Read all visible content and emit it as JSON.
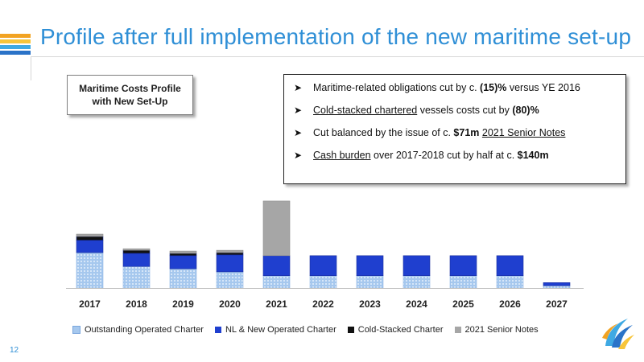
{
  "header": {
    "title": "Profile after full implementation of the new maritime set-up"
  },
  "costs_box": {
    "line1": "Maritime Costs Profile",
    "line2": "with New Set-Up"
  },
  "bullets": [
    {
      "parts": [
        {
          "t": "Maritime-related obligations cut by c. "
        },
        {
          "t": "(15)%",
          "b": true
        },
        {
          "t": " versus YE 2016"
        }
      ]
    },
    {
      "parts": [
        {
          "t": "Cold-stacked chartered",
          "u": true
        },
        {
          "t": " vessels costs cut by "
        },
        {
          "t": "(80)%",
          "b": true
        }
      ]
    },
    {
      "parts": [
        {
          "t": "Cut balanced by the issue of c. "
        },
        {
          "t": "$71m",
          "b": true
        },
        {
          "t": " "
        },
        {
          "t": "2021 Senior Notes",
          "u": true
        }
      ]
    },
    {
      "parts": [
        {
          "t": "Cash burden",
          "u": true
        },
        {
          "t": " over 2017-2018 cut by half at c. "
        },
        {
          "t": "$140m",
          "b": true
        }
      ]
    }
  ],
  "chart_data": {
    "type": "bar",
    "stacked": true,
    "categories": [
      "2017",
      "2018",
      "2019",
      "2020",
      "2021",
      "2022",
      "2023",
      "2024",
      "2025",
      "2026",
      "2027"
    ],
    "series": [
      {
        "name": "Outstanding Operated Charter",
        "color": "#a6c8ee",
        "values": [
          46,
          28,
          25,
          21,
          16,
          16,
          16,
          16,
          16,
          16,
          3
        ]
      },
      {
        "name": "NL & New Operated Charter",
        "color": "#1f3fcf",
        "values": [
          16,
          17,
          17,
          22,
          26,
          26,
          26,
          26,
          26,
          26,
          4
        ]
      },
      {
        "name": "Cold-Stacked Charter",
        "color": "#111111",
        "values": [
          5,
          4,
          3,
          3,
          0,
          0,
          0,
          0,
          0,
          0,
          0
        ]
      },
      {
        "name": "2021 Senior Notes",
        "color": "#a6a6a6",
        "values": [
          3,
          2,
          3,
          3,
          71,
          0,
          0,
          0,
          0,
          0,
          0
        ]
      }
    ],
    "ylim": [
      0,
      115
    ],
    "grid": false,
    "legend": "bottom"
  },
  "legend_label_source": "chart_data.series",
  "page": {
    "number": "12"
  },
  "colors": {
    "title": "#2f8fd6",
    "stripe_1": "#f2a322",
    "stripe_2": "#f7c53b",
    "stripe_3": "#3fa9e3",
    "stripe_4": "#2a73c8"
  }
}
